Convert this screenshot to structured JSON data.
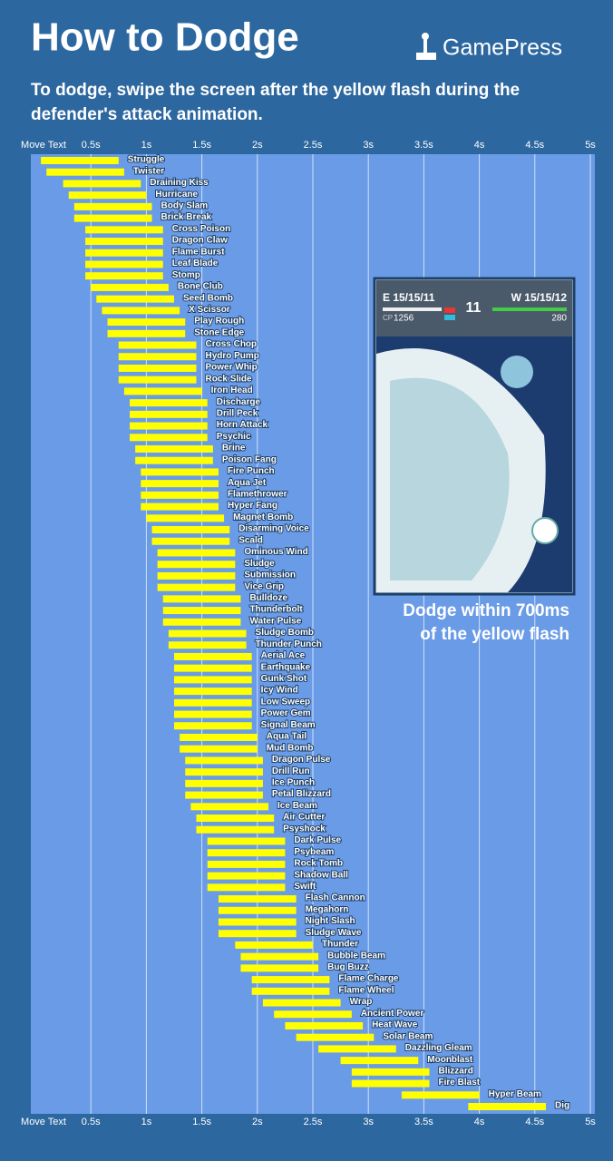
{
  "header": {
    "title": "How to Dodge",
    "brand": "GamePress",
    "subtitle": [
      "To dodge, swipe the screen after the yellow flash during the",
      "defender's attack animation."
    ]
  },
  "inset": {
    "left_label": "E 15/15/11",
    "right_label": "W 15/15/12",
    "timer": "11",
    "cp": "1256",
    "hp": "280",
    "caption": [
      "Dodge within 700ms",
      "of  the yellow flash"
    ]
  },
  "chart_data": {
    "type": "range_bar",
    "x_label": "Move Text",
    "color": "#ffff00",
    "grid": true,
    "xlim": [
      0,
      5
    ],
    "xticks": [
      {
        "value": 0.5,
        "label": "0.5s"
      },
      {
        "value": 1,
        "label": "1s"
      },
      {
        "value": 1.5,
        "label": "1.5s"
      },
      {
        "value": 2,
        "label": "2s"
      },
      {
        "value": 2.5,
        "label": "2.5s"
      },
      {
        "value": 3,
        "label": "3s"
      },
      {
        "value": 3.5,
        "label": "3.5s"
      },
      {
        "value": 4,
        "label": "4s"
      },
      {
        "value": 4.5,
        "label": "4.5s"
      },
      {
        "value": 5,
        "label": "5s"
      }
    ],
    "categories": [
      "Struggle",
      "Twister",
      "Draining Kiss",
      "Hurricane",
      "Body Slam",
      "Brick Break",
      "Cross Poison",
      "Dragon Claw",
      "Flame Burst",
      "Leaf Blade",
      "Stomp",
      "Bone Club",
      "Seed Bomb",
      "X Scissor",
      "Play Rough",
      "Stone Edge",
      "Cross Chop",
      "Hydro Pump",
      "Power Whip",
      "Rock Slide",
      "Iron Head",
      "Discharge",
      "Drill Peck",
      "Horn Attack",
      "Psychic",
      "Brine",
      "Poison Fang",
      "Fire Punch",
      "Aqua Jet",
      "Flamethrower",
      "Hyper Fang",
      "Magnet Bomb",
      "Disarming Voice",
      "Scald",
      "Ominous Wind",
      "Sludge",
      "Submission",
      "Vice Grip",
      "Bulldoze",
      "Thunderbolt",
      "Water Pulse",
      "Sludge Bomb",
      "Thunder Punch",
      "Aerial Ace",
      "Earthquake",
      "Gunk Shot",
      "Icy Wind",
      "Low Sweep",
      "Power Gem",
      "Signal Beam",
      "Aqua Tail",
      "Mud Bomb",
      "Dragon Pulse",
      "Drill Run",
      "Ice Punch",
      "Petal Blizzard",
      "Ice Beam",
      "Air Cutter",
      "Psyshock",
      "Dark Pulse",
      "Psybeam",
      "Rock Tomb",
      "Shadow Ball",
      "Swift",
      "Flash Cannon",
      "Megahorn",
      "Night Slash",
      "Sludge Wave",
      "Thunder",
      "Bubble Beam",
      "Bug Buzz",
      "Flame Charge",
      "Flame Wheel",
      "Wrap",
      "Ancient Power",
      "Heat Wave",
      "Solar Beam",
      "Dazzling Gleam",
      "Moonblast",
      "Blizzard",
      "Fire Blast",
      "Hyper Beam",
      "Dig"
    ],
    "start": [
      0.05,
      0.1,
      0.25,
      0.3,
      0.35,
      0.35,
      0.45,
      0.45,
      0.45,
      0.45,
      0.45,
      0.5,
      0.55,
      0.6,
      0.65,
      0.65,
      0.75,
      0.75,
      0.75,
      0.75,
      0.8,
      0.85,
      0.85,
      0.85,
      0.85,
      0.9,
      0.9,
      0.95,
      0.95,
      0.95,
      0.95,
      1.0,
      1.05,
      1.05,
      1.1,
      1.1,
      1.1,
      1.1,
      1.15,
      1.15,
      1.15,
      1.2,
      1.2,
      1.25,
      1.25,
      1.25,
      1.25,
      1.25,
      1.25,
      1.25,
      1.3,
      1.3,
      1.35,
      1.35,
      1.35,
      1.35,
      1.4,
      1.45,
      1.45,
      1.55,
      1.55,
      1.55,
      1.55,
      1.55,
      1.65,
      1.65,
      1.65,
      1.65,
      1.8,
      1.85,
      1.85,
      1.95,
      1.95,
      2.05,
      2.15,
      2.25,
      2.35,
      2.55,
      2.75,
      2.85,
      2.85,
      3.3,
      3.9
    ],
    "end": [
      0.75,
      0.8,
      0.95,
      1.0,
      1.05,
      1.05,
      1.15,
      1.15,
      1.15,
      1.15,
      1.15,
      1.2,
      1.25,
      1.3,
      1.35,
      1.35,
      1.45,
      1.45,
      1.45,
      1.45,
      1.5,
      1.55,
      1.55,
      1.55,
      1.55,
      1.6,
      1.6,
      1.65,
      1.65,
      1.65,
      1.65,
      1.7,
      1.75,
      1.75,
      1.8,
      1.8,
      1.8,
      1.8,
      1.85,
      1.85,
      1.85,
      1.9,
      1.9,
      1.95,
      1.95,
      1.95,
      1.95,
      1.95,
      1.95,
      1.95,
      2.0,
      2.0,
      2.05,
      2.05,
      2.05,
      2.05,
      2.1,
      2.15,
      2.15,
      2.25,
      2.25,
      2.25,
      2.25,
      2.25,
      2.35,
      2.35,
      2.35,
      2.35,
      2.5,
      2.55,
      2.55,
      2.65,
      2.65,
      2.75,
      2.85,
      2.95,
      3.05,
      3.25,
      3.45,
      3.55,
      3.55,
      4.0,
      4.6
    ]
  }
}
